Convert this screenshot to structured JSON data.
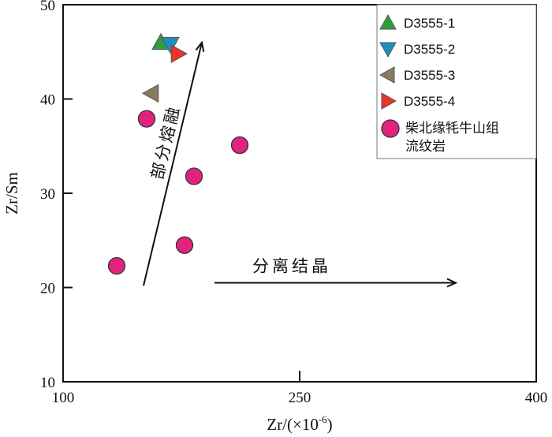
{
  "chart_data": {
    "type": "scatter",
    "xlabel": "Zr/(×10",
    "xlabel_sup": "-6",
    "xlabel_close": ")",
    "ylabel": "Zr/Sm",
    "xlim": [
      100,
      400
    ],
    "ylim": [
      10,
      50
    ],
    "x_ticks": [
      "100",
      "250",
      "400"
    ],
    "y_ticks": [
      "10",
      "20",
      "30",
      "40",
      "50"
    ],
    "series": [
      {
        "name": "D3555-1",
        "marker": "triangle-up",
        "color": "#2e9e3a",
        "points": [
          [
            162,
            46.0
          ]
        ]
      },
      {
        "name": "D3555-2",
        "marker": "triangle-down",
        "color": "#1f8fc0",
        "points": [
          [
            168,
            45.8
          ]
        ]
      },
      {
        "name": "D3555-3",
        "marker": "triangle-left",
        "color": "#8a7a5e",
        "points": [
          [
            156,
            40.6
          ]
        ]
      },
      {
        "name": "D3555-4",
        "marker": "triangle-right",
        "color": "#e8342a",
        "points": [
          [
            173,
            44.8
          ]
        ]
      },
      {
        "name_lines": [
          "柴北缘牦牛山组",
          "流纹岩"
        ],
        "marker": "circle",
        "color": "#e2237d",
        "points": [
          [
            134,
            22.3
          ],
          [
            153,
            37.9
          ],
          [
            177,
            24.5
          ],
          [
            183,
            31.8
          ],
          [
            212,
            35.1
          ]
        ]
      }
    ],
    "annotations": [
      {
        "text": "部分熔融",
        "from": [
          151,
          20.2
        ],
        "to": [
          188,
          46.0
        ]
      },
      {
        "text": "分离结晶",
        "from": [
          196,
          20.5
        ],
        "to": [
          349,
          20.5
        ]
      }
    ]
  }
}
